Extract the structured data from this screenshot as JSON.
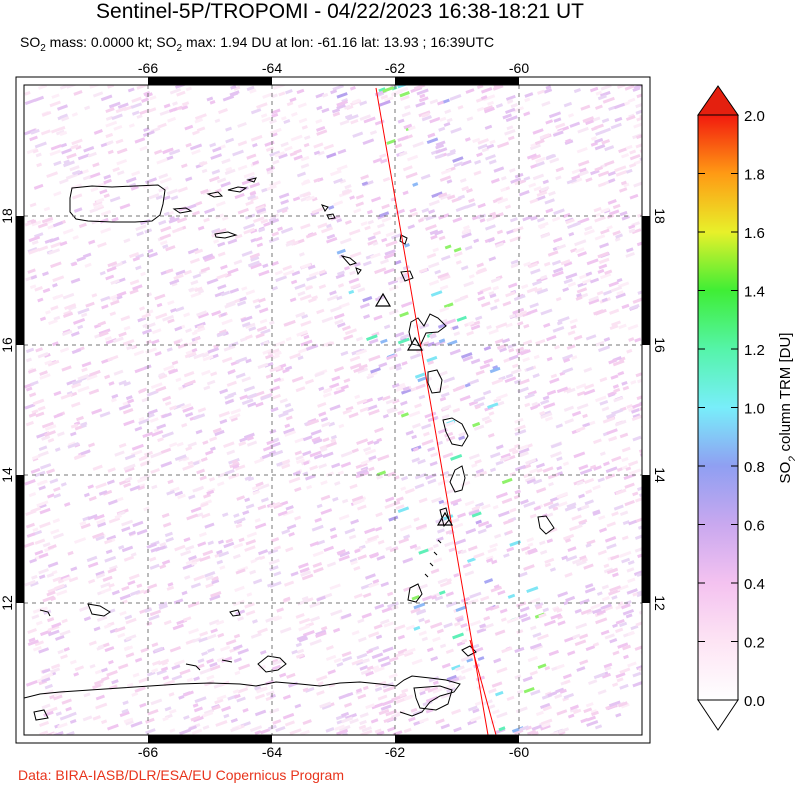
{
  "title": "Sentinel-5P/TROPOMI - 04/22/2023 16:38-18:21 UT",
  "subtitle": {
    "part1": "SO",
    "sub1": "2",
    "part2": " mass: 0.0000 kt; SO",
    "sub2": "2",
    "part3": " max: 1.94 DU at lon: -61.16 lat: 13.93 ; 16:39UTC"
  },
  "credit": "Data: BIRA-IASB/DLR/ESA/EU Copernicus Program",
  "map": {
    "lon_range": [
      -68.0,
      -58.0
    ],
    "lat_range": [
      10.0,
      20.0
    ],
    "lon_ticks": [
      "-66",
      "-64",
      "-62",
      "-60"
    ],
    "lat_ticks": [
      "18",
      "16",
      "14",
      "12"
    ],
    "grid": "dashed",
    "orbit_track_color": "#ff0000"
  },
  "colorbar": {
    "label_pre": "SO",
    "label_sub": "2",
    "label_post": " column TRM [DU]",
    "ticks": [
      "2.0",
      "1.8",
      "1.6",
      "1.4",
      "1.2",
      "1.0",
      "0.8",
      "0.6",
      "0.4",
      "0.2",
      "0.0"
    ],
    "range": [
      0.0,
      2.0
    ]
  },
  "colors": {
    "credit": "#e8341c",
    "track": "#ff0000"
  }
}
